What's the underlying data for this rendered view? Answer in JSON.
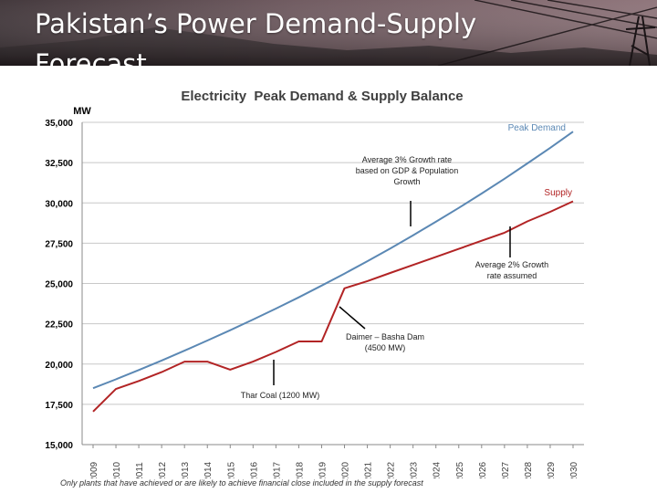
{
  "slide": {
    "title": "Pakistan’s Power Demand-Supply Forecast"
  },
  "footnote": "Only plants that have achieved or are likely to achieve financial close included in the supply forecast",
  "colors": {
    "demand": "#5b88b4",
    "supply": "#b22425",
    "banner_dark": "#3a2f33",
    "banner_light": "#8b7076",
    "grid": "#c8c8c8"
  },
  "chart_data": {
    "type": "line",
    "title": "Electricity  Peak Demand & Supply Balance",
    "ylabel": "MW",
    "xlabel": "",
    "ylim": [
      15000,
      35000
    ],
    "yticks": [
      15000,
      17500,
      20000,
      22500,
      25000,
      27500,
      30000,
      32500,
      35000
    ],
    "ytick_labels": [
      "15,000",
      "17,500",
      "20,000",
      "22,500",
      "25,000",
      "27,500",
      "30,000",
      "32,500",
      "35,000"
    ],
    "categories": [
      "2009",
      "2010",
      "2011",
      "2012",
      "2013",
      "2014",
      "2015",
      "2016",
      "2017",
      "2018",
      "2019",
      "2020",
      "2021",
      "2022",
      "2023",
      "2024",
      "2025",
      "2026",
      "2027",
      "2028",
      "2029",
      "2030"
    ],
    "grid": true,
    "series": [
      {
        "name": "Peak Demand",
        "values": [
          18500,
          19050,
          19630,
          20220,
          20830,
          21460,
          22100,
          22760,
          23440,
          24140,
          24870,
          25610,
          26380,
          27170,
          27990,
          28830,
          29690,
          30580,
          31500,
          32450,
          33420,
          34420
        ]
      },
      {
        "name": "Supply",
        "values": [
          17050,
          18450,
          18950,
          19500,
          20150,
          20150,
          19650,
          20150,
          20750,
          21400,
          21400,
          24700,
          25150,
          25650,
          26150,
          26650,
          27150,
          27650,
          28150,
          28850,
          29450,
          30100
        ]
      }
    ],
    "annotations": [
      {
        "id": "demand-growth",
        "text": [
          "Average 3% Growth rate",
          "based on GDP & Population",
          "Growth"
        ]
      },
      {
        "id": "supply-growth",
        "text": [
          "Average 2% Growth",
          "rate assumed"
        ]
      },
      {
        "id": "diamer-basha",
        "text": [
          "Daimer – Basha Dam",
          "(4500 MW)"
        ]
      },
      {
        "id": "thar-coal",
        "text": [
          "Thar Coal (1200 MW)"
        ]
      }
    ]
  }
}
